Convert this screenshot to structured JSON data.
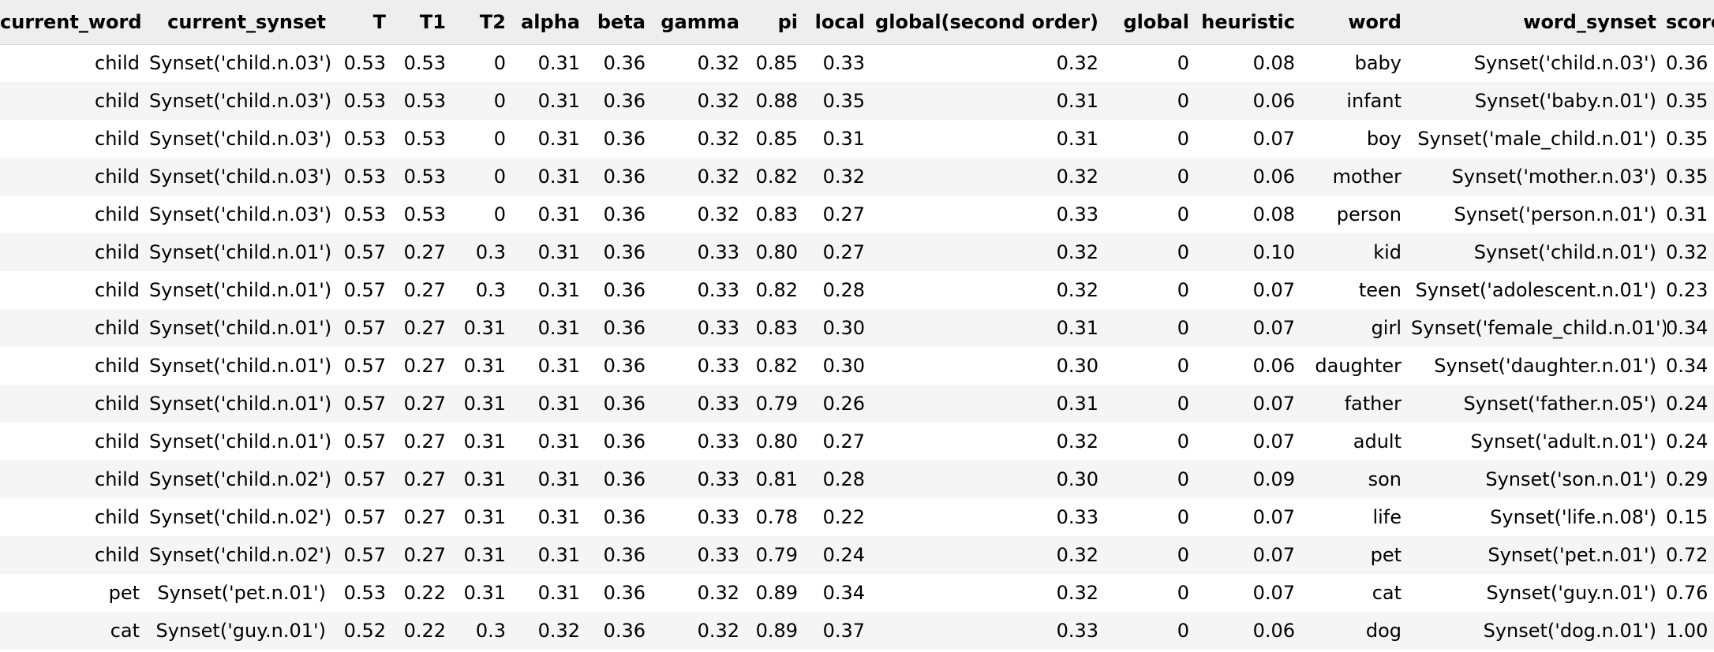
{
  "table": {
    "columns": [
      "current_word",
      "current_synset",
      "T",
      "T1",
      "T2",
      "alpha",
      "beta",
      "gamma",
      "pi",
      "local",
      "global(second order)",
      "global",
      "heuristic",
      "word",
      "word_synset",
      "score"
    ],
    "rows": [
      [
        "child",
        "Synset('child.n.03')",
        "0.53",
        "0.53",
        "0",
        "0.31",
        "0.36",
        "0.32",
        "0.85",
        "0.33",
        "0.32",
        "0",
        "0.08",
        "baby",
        "Synset('child.n.03')",
        "0.36"
      ],
      [
        "child",
        "Synset('child.n.03')",
        "0.53",
        "0.53",
        "0",
        "0.31",
        "0.36",
        "0.32",
        "0.88",
        "0.35",
        "0.31",
        "0",
        "0.06",
        "infant",
        "Synset('baby.n.01')",
        "0.35"
      ],
      [
        "child",
        "Synset('child.n.03')",
        "0.53",
        "0.53",
        "0",
        "0.31",
        "0.36",
        "0.32",
        "0.85",
        "0.31",
        "0.31",
        "0",
        "0.07",
        "boy",
        "Synset('male_child.n.01')",
        "0.35"
      ],
      [
        "child",
        "Synset('child.n.03')",
        "0.53",
        "0.53",
        "0",
        "0.31",
        "0.36",
        "0.32",
        "0.82",
        "0.32",
        "0.32",
        "0",
        "0.06",
        "mother",
        "Synset('mother.n.03')",
        "0.35"
      ],
      [
        "child",
        "Synset('child.n.03')",
        "0.53",
        "0.53",
        "0",
        "0.31",
        "0.36",
        "0.32",
        "0.83",
        "0.27",
        "0.33",
        "0",
        "0.08",
        "person",
        "Synset('person.n.01')",
        "0.31"
      ],
      [
        "child",
        "Synset('child.n.01')",
        "0.57",
        "0.27",
        "0.3",
        "0.31",
        "0.36",
        "0.33",
        "0.80",
        "0.27",
        "0.32",
        "0",
        "0.10",
        "kid",
        "Synset('child.n.01')",
        "0.32"
      ],
      [
        "child",
        "Synset('child.n.01')",
        "0.57",
        "0.27",
        "0.3",
        "0.31",
        "0.36",
        "0.33",
        "0.82",
        "0.28",
        "0.32",
        "0",
        "0.07",
        "teen",
        "Synset('adolescent.n.01')",
        "0.23"
      ],
      [
        "child",
        "Synset('child.n.01')",
        "0.57",
        "0.27",
        "0.31",
        "0.31",
        "0.36",
        "0.33",
        "0.83",
        "0.30",
        "0.31",
        "0",
        "0.07",
        "girl",
        "Synset('female_child.n.01')",
        "0.34"
      ],
      [
        "child",
        "Synset('child.n.01')",
        "0.57",
        "0.27",
        "0.31",
        "0.31",
        "0.36",
        "0.33",
        "0.82",
        "0.30",
        "0.30",
        "0",
        "0.06",
        "daughter",
        "Synset('daughter.n.01')",
        "0.34"
      ],
      [
        "child",
        "Synset('child.n.01')",
        "0.57",
        "0.27",
        "0.31",
        "0.31",
        "0.36",
        "0.33",
        "0.79",
        "0.26",
        "0.31",
        "0",
        "0.07",
        "father",
        "Synset('father.n.05')",
        "0.24"
      ],
      [
        "child",
        "Synset('child.n.01')",
        "0.57",
        "0.27",
        "0.31",
        "0.31",
        "0.36",
        "0.33",
        "0.80",
        "0.27",
        "0.32",
        "0",
        "0.07",
        "adult",
        "Synset('adult.n.01')",
        "0.24"
      ],
      [
        "child",
        "Synset('child.n.02')",
        "0.57",
        "0.27",
        "0.31",
        "0.31",
        "0.36",
        "0.33",
        "0.81",
        "0.28",
        "0.30",
        "0",
        "0.09",
        "son",
        "Synset('son.n.01')",
        "0.29"
      ],
      [
        "child",
        "Synset('child.n.02')",
        "0.57",
        "0.27",
        "0.31",
        "0.31",
        "0.36",
        "0.33",
        "0.78",
        "0.22",
        "0.33",
        "0",
        "0.07",
        "life",
        "Synset('life.n.08')",
        "0.15"
      ],
      [
        "child",
        "Synset('child.n.02')",
        "0.57",
        "0.27",
        "0.31",
        "0.31",
        "0.36",
        "0.33",
        "0.79",
        "0.24",
        "0.32",
        "0",
        "0.07",
        "pet",
        "Synset('pet.n.01')",
        "0.72"
      ],
      [
        "pet",
        "Synset('pet.n.01')",
        "0.53",
        "0.22",
        "0.31",
        "0.31",
        "0.36",
        "0.32",
        "0.89",
        "0.34",
        "0.32",
        "0",
        "0.07",
        "cat",
        "Synset('guy.n.01')",
        "0.76"
      ],
      [
        "cat",
        "Synset('guy.n.01')",
        "0.52",
        "0.22",
        "0.3",
        "0.32",
        "0.36",
        "0.32",
        "0.89",
        "0.37",
        "0.33",
        "0",
        "0.06",
        "dog",
        "Synset('dog.n.01')",
        "1.00"
      ]
    ]
  }
}
